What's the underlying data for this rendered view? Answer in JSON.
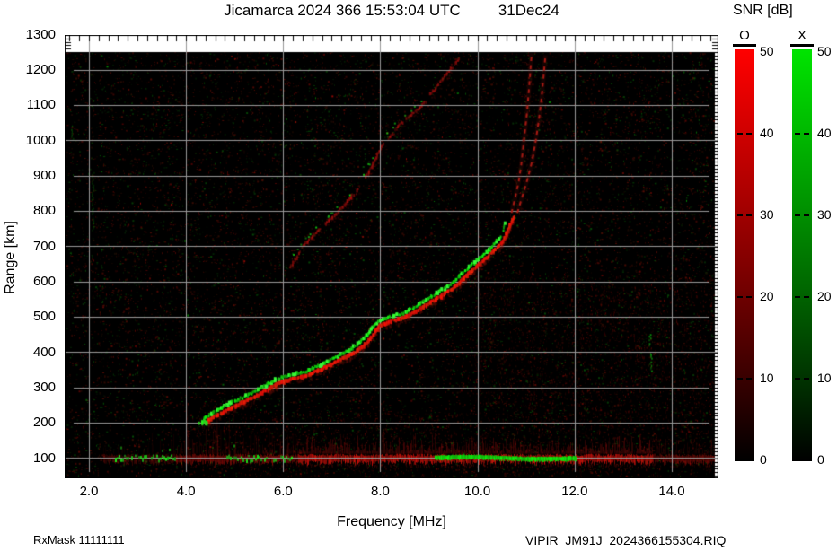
{
  "header": {
    "title": "Jicamarca 2024 366 15:53:04 UTC",
    "date": "31Dec24"
  },
  "footer": {
    "rx_mask": "RxMask 11111111",
    "file": "VIPIR  JM91J_2024366155304.RIQ"
  },
  "colorbar": {
    "title": "SNR [dB]",
    "o_label": "O",
    "x_label": "X",
    "o_color": "#ff0000",
    "x_color": "#00e400",
    "ticks": [
      "50",
      "40",
      "30",
      "20",
      "10",
      "0"
    ],
    "tick_values": [
      50,
      40,
      30,
      20,
      10,
      0
    ],
    "min": 0,
    "max": 50
  },
  "y_axis": {
    "title": "Range [km]",
    "ticks": [
      "1300",
      "1200",
      "1100",
      "1000",
      "900",
      "800",
      "700",
      "600",
      "500",
      "400",
      "300",
      "200",
      "100"
    ],
    "tick_values": [
      1300,
      1200,
      1100,
      1000,
      900,
      800,
      700,
      600,
      500,
      400,
      300,
      200,
      100
    ]
  },
  "x_axis": {
    "title": "Frequency [MHz]",
    "ticks": [
      "2.0",
      "4.0",
      "6.0",
      "8.0",
      "10.0",
      "12.0",
      "14.0"
    ],
    "tick_values": [
      2,
      4,
      6,
      8,
      10,
      12,
      14
    ]
  },
  "chart_data": {
    "type": "heatmap",
    "title": "Jicamarca 2024 366 15:53:04 UTC 31Dec24",
    "xlabel": "Frequency [MHz]",
    "ylabel": "Range [km]",
    "xlim_mhz": [
      1.5,
      14.95
    ],
    "ylim_km": [
      43,
      1300
    ],
    "data_top_km": 1250,
    "x_major_ticks": [
      2,
      4,
      6,
      8,
      10,
      12,
      14
    ],
    "x_minor_step_mhz": 0.2,
    "y_major_ticks": [
      100,
      200,
      300,
      400,
      500,
      600,
      700,
      800,
      900,
      1000,
      1100,
      1200,
      1300
    ],
    "y_minor_step_km": 10,
    "grid": true,
    "grid_color": "#999999",
    "plot_bg": "#000000",
    "colorbar": {
      "label": "SNR [dB]",
      "min": 0,
      "max": 50,
      "modes": [
        {
          "name": "O",
          "color": "#ff0000"
        },
        {
          "name": "X",
          "color": "#00e400"
        }
      ]
    },
    "series": [
      {
        "name": "f-region-echo-trace-o-and-x",
        "points_f_r": [
          [
            4.39,
            207
          ],
          [
            4.7,
            231
          ],
          [
            5.01,
            254
          ],
          [
            5.31,
            272
          ],
          [
            5.62,
            297
          ],
          [
            5.9,
            318
          ],
          [
            6.12,
            328
          ],
          [
            6.46,
            338
          ],
          [
            6.79,
            358
          ],
          [
            7.16,
            384
          ],
          [
            7.45,
            404
          ],
          [
            7.7,
            432
          ],
          [
            7.97,
            480
          ],
          [
            8.25,
            495
          ],
          [
            8.49,
            503
          ],
          [
            9.04,
            547
          ],
          [
            9.51,
            590
          ],
          [
            9.97,
            648
          ],
          [
            10.25,
            682
          ],
          [
            10.49,
            717
          ],
          [
            10.63,
            758
          ],
          [
            10.73,
            790
          ]
        ],
        "green_fade_above_mhz": 10.45
      },
      {
        "name": "second-hop-echo",
        "points_f_r": [
          [
            6.15,
            640
          ],
          [
            6.42,
            704
          ],
          [
            6.83,
            762
          ],
          [
            7.07,
            790
          ],
          [
            7.51,
            857
          ],
          [
            7.8,
            920
          ],
          [
            8.05,
            990
          ],
          [
            8.4,
            1045
          ],
          [
            8.86,
            1101
          ],
          [
            9.2,
            1160
          ],
          [
            9.54,
            1220
          ],
          [
            9.68,
            1242
          ]
        ],
        "green_speckle_below_mhz": 9.0
      },
      {
        "name": "o-mode-asymptote-dash-1",
        "points_f_r": [
          [
            10.7,
            795
          ],
          [
            10.78,
            840
          ],
          [
            10.85,
            885
          ],
          [
            10.9,
            930
          ],
          [
            10.94,
            980
          ],
          [
            10.98,
            1030
          ],
          [
            11.02,
            1080
          ],
          [
            11.05,
            1130
          ],
          [
            11.08,
            1180
          ],
          [
            11.1,
            1222
          ],
          [
            11.12,
            1248
          ]
        ]
      },
      {
        "name": "o-mode-asymptote-dash-2",
        "points_f_r": [
          [
            10.82,
            795
          ],
          [
            10.93,
            845
          ],
          [
            11.04,
            895
          ],
          [
            11.13,
            945
          ],
          [
            11.2,
            1000
          ],
          [
            11.26,
            1055
          ],
          [
            11.31,
            1110
          ],
          [
            11.35,
            1165
          ],
          [
            11.38,
            1212
          ],
          [
            11.4,
            1242
          ]
        ]
      }
    ],
    "e_region_band": {
      "center_km": 103,
      "red_segments": [
        {
          "f1": 2.3,
          "f2": 3.8,
          "intensity": 0.3
        },
        {
          "f1": 3.8,
          "f2": 6.3,
          "intensity": 0.55
        },
        {
          "f1": 6.3,
          "f2": 13.6,
          "intensity": 0.95
        },
        {
          "f1": 13.6,
          "f2": 14.9,
          "intensity": 0.5
        }
      ],
      "green_segments": [
        {
          "f1": 2.54,
          "f2": 3.78,
          "style": "patchy-bright"
        },
        {
          "f1": 4.79,
          "f2": 6.18,
          "style": "patchy"
        },
        {
          "f1": 9.12,
          "f2": 12.02,
          "style": "solid"
        }
      ]
    },
    "rfi_streak_zones": [
      {
        "f1": 3.96,
        "f2": 6.36,
        "max_top_km": 270,
        "n": 46,
        "alpha": 0.3
      },
      {
        "f1": 8.2,
        "f2": 10.0,
        "max_top_km": 190,
        "n": 26,
        "alpha": 0.18
      }
    ],
    "noise_regions": [
      {
        "f1": 9.9,
        "f2": 14.9,
        "r1": 45,
        "r2": 620,
        "n": 2600,
        "color": "red"
      },
      {
        "f1": 4.0,
        "f2": 9.8,
        "r1": 45,
        "r2": 230,
        "n": 900,
        "color": "red"
      }
    ],
    "green_columns": [
      {
        "f": 13.54,
        "r1": 420,
        "r2": 452,
        "bright": 0.85
      },
      {
        "f": 13.56,
        "r1": 348,
        "r2": 400,
        "bright": 0.7
      },
      {
        "f": 1.65,
        "r1": 1000,
        "r2": 1043,
        "bright": 0.5
      },
      {
        "f": 2.07,
        "r1": 748,
        "r2": 916,
        "bright": 0.3
      }
    ]
  }
}
